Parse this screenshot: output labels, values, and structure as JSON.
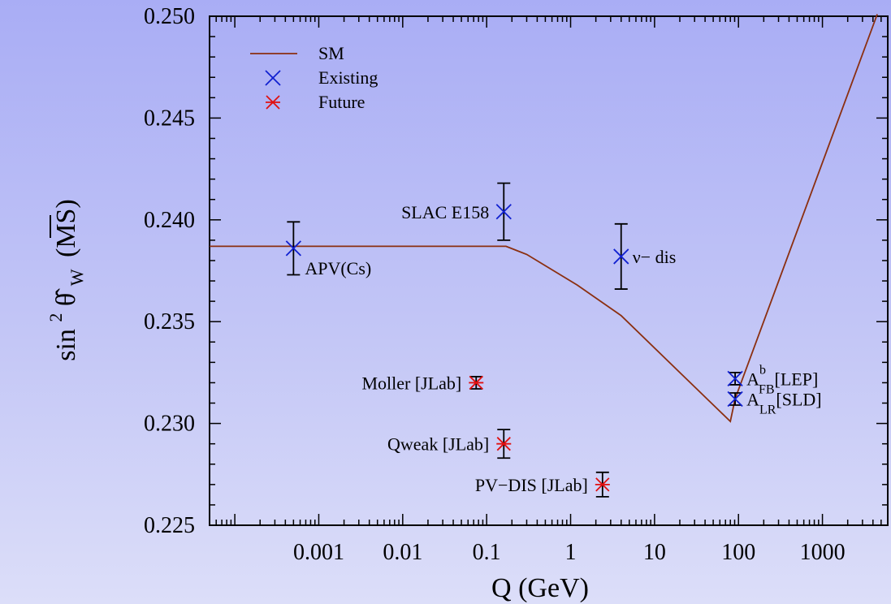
{
  "chart_data": {
    "type": "scatter",
    "title": "",
    "xlabel": "Q (GeV)",
    "ylabel": {
      "sin_text": "sin",
      "superscript": "2",
      "theta_text": "θ̂",
      "subscript": "W",
      "scheme_text": "(MS)"
    },
    "xscale": "log",
    "xlim": [
      5e-05,
      6000
    ],
    "ylim": [
      0.225,
      0.25
    ],
    "xticks": [
      {
        "value": 0.001,
        "label": "0.001"
      },
      {
        "value": 0.01,
        "label": "0.01"
      },
      {
        "value": 0.1,
        "label": "0.1"
      },
      {
        "value": 1,
        "label": "1"
      },
      {
        "value": 10,
        "label": "10"
      },
      {
        "value": 100,
        "label": "100"
      },
      {
        "value": 1000,
        "label": "1000"
      }
    ],
    "yticks": [
      {
        "value": 0.225,
        "label": "0.225"
      },
      {
        "value": 0.23,
        "label": "0.230"
      },
      {
        "value": 0.235,
        "label": "0.235"
      },
      {
        "value": 0.24,
        "label": "0.240"
      },
      {
        "value": 0.245,
        "label": "0.245"
      },
      {
        "value": 0.25,
        "label": "0.250"
      }
    ],
    "legend": {
      "placement": "top-left",
      "entries": [
        {
          "label": "SM",
          "marker": "line",
          "color": "#8b2f10"
        },
        {
          "label": "Existing",
          "marker": "x",
          "color": "#1020d0"
        },
        {
          "label": "Future",
          "marker": "asterisk",
          "color": "#e01010"
        }
      ]
    },
    "series": [
      {
        "name": "SM",
        "kind": "line",
        "color": "#8b2f10",
        "points": [
          [
            5e-05,
            0.2387
          ],
          [
            0.001,
            0.2387
          ],
          [
            0.01,
            0.2387
          ],
          [
            0.17,
            0.2387
          ],
          [
            0.3,
            0.2383
          ],
          [
            1.2,
            0.2368
          ],
          [
            4,
            0.2353
          ],
          [
            20,
            0.2325
          ],
          [
            80,
            0.2301
          ],
          [
            91,
            0.2312
          ],
          [
            4500,
            0.2501
          ]
        ]
      },
      {
        "name": "Existing",
        "kind": "points",
        "marker": "x",
        "color": "#1020d0",
        "points": [
          {
            "x": 0.0005,
            "y": 0.2386,
            "err": 0.0013,
            "label": "APV(Cs)",
            "label_pos": "below-right"
          },
          {
            "x": 0.16,
            "y": 0.2404,
            "err": 0.0014,
            "label": "SLAC E158",
            "label_pos": "left"
          },
          {
            "x": 4,
            "y": 0.2382,
            "err": 0.0016,
            "label": "ν− dis",
            "label_pos": "right"
          },
          {
            "x": 91.2,
            "y": 0.2322,
            "err": 0.0003,
            "label": "A",
            "label_sup": "b",
            "label_sub": "FB",
            "label_suffix": "[LEP]",
            "label_pos": "right"
          },
          {
            "x": 91.2,
            "y": 0.2312,
            "err": 0.0003,
            "label": "A",
            "label_sub": "LR",
            "label_suffix": "[SLD]",
            "label_pos": "right"
          }
        ]
      },
      {
        "name": "Future",
        "kind": "points",
        "marker": "asterisk",
        "color": "#e01010",
        "points": [
          {
            "x": 0.075,
            "y": 0.232,
            "err": 0.0003,
            "label": "Moller [JLab]",
            "label_pos": "left"
          },
          {
            "x": 0.16,
            "y": 0.229,
            "err": 0.0007,
            "label": "Qweak [JLab]",
            "label_pos": "left"
          },
          {
            "x": 2.4,
            "y": 0.227,
            "err": 0.0006,
            "label": "PV−DIS [JLab]",
            "label_pos": "left"
          }
        ]
      }
    ],
    "grid": false
  }
}
